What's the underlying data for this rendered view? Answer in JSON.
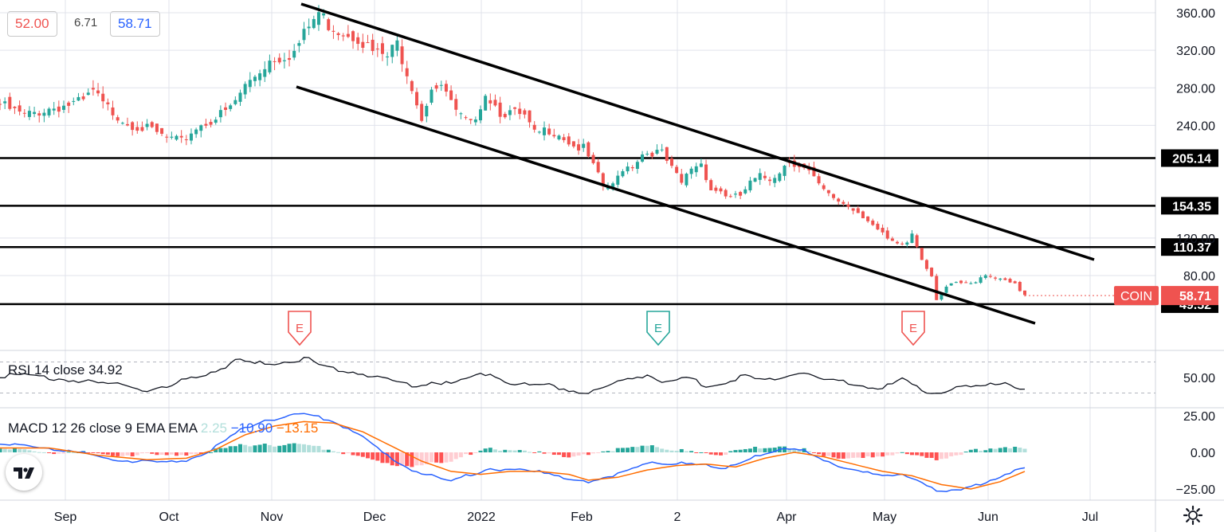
{
  "header": {
    "values": [
      "52.00",
      "6.71",
      "58.71"
    ]
  },
  "colors": {
    "up": "#26a69a",
    "down": "#ef5350",
    "black": "#000000",
    "macd_line": "#2962ff",
    "signal_line": "#ff6d00",
    "hist_up_strong": "#26a69a",
    "hist_up_weak": "#b2dfdb",
    "hist_down_strong": "#ff5252",
    "hist_down_weak": "#ffcdd2",
    "grid": "#e0e3eb"
  },
  "chart_data": {
    "type": "candlestick",
    "symbol": "COIN",
    "price_axis": {
      "ticks": [
        "360.00",
        "320.00",
        "280.00",
        "240.00",
        "120.00",
        "80.00"
      ],
      "tick_values": [
        360,
        320,
        280,
        240,
        120,
        80
      ],
      "ylim": [
        32,
        370
      ]
    },
    "time_axis": {
      "labels": [
        "Sep",
        "Oct",
        "Nov",
        "Dec",
        "2022",
        "Feb",
        "2",
        "Apr",
        "May",
        "Jun",
        "Jul"
      ]
    },
    "horizontal_levels": [
      {
        "value": 205.14,
        "label": "205.14"
      },
      {
        "value": 154.35,
        "label": "154.35"
      },
      {
        "value": 110.37,
        "label": "110.37"
      },
      {
        "value": 49.52,
        "label": "49.52"
      }
    ],
    "last_price": {
      "symbol": "COIN",
      "value": 58.71,
      "label": "58.71"
    },
    "channel_lines": [
      {
        "name": "upper",
        "from": {
          "x": "Nov 8",
          "y": 365
        },
        "to": {
          "x": "Jul 1",
          "y": 100
        }
      },
      {
        "name": "lower",
        "from": {
          "x": "Nov 8",
          "y": 283
        },
        "to": {
          "x": "Jun 24",
          "y": 33
        }
      }
    ],
    "earnings_markers": [
      {
        "letter": "E",
        "date": "Nov 9",
        "style": "miss"
      },
      {
        "letter": "E",
        "date": "Feb 24",
        "style": "beat"
      },
      {
        "letter": "E",
        "date": "May 10",
        "style": "miss"
      }
    ],
    "price_keypoints": [
      [
        0,
        262
      ],
      [
        5,
        250
      ],
      [
        10,
        258
      ],
      [
        17,
        265
      ],
      [
        19,
        276
      ],
      [
        21,
        262
      ],
      [
        26,
        243
      ],
      [
        31,
        234
      ],
      [
        34,
        226
      ],
      [
        37,
        222
      ],
      [
        40,
        238
      ],
      [
        44,
        248
      ],
      [
        47,
        258
      ],
      [
        50,
        282
      ],
      [
        55,
        310
      ],
      [
        60,
        318
      ],
      [
        63,
        345
      ],
      [
        65,
        360
      ],
      [
        67,
        348
      ],
      [
        69,
        342
      ],
      [
        73,
        335
      ],
      [
        76,
        318
      ],
      [
        79,
        313
      ],
      [
        81,
        327
      ],
      [
        84,
        283
      ],
      [
        86,
        248
      ],
      [
        88,
        282
      ],
      [
        91,
        275
      ],
      [
        93,
        252
      ],
      [
        96,
        240
      ],
      [
        99,
        275
      ],
      [
        102,
        255
      ],
      [
        105,
        252
      ],
      [
        107,
        248
      ],
      [
        109,
        230
      ],
      [
        112,
        236
      ],
      [
        114,
        232
      ],
      [
        117,
        218
      ],
      [
        119,
        215
      ],
      [
        121,
        196
      ],
      [
        123,
        175
      ],
      [
        125,
        175
      ],
      [
        127,
        195
      ],
      [
        129,
        198
      ],
      [
        131,
        210
      ],
      [
        133,
        212
      ],
      [
        135,
        210
      ],
      [
        137,
        193
      ],
      [
        139,
        178
      ],
      [
        141,
        195
      ],
      [
        143,
        200
      ],
      [
        145,
        172
      ],
      [
        147,
        170
      ],
      [
        149,
        162
      ],
      [
        151,
        165
      ],
      [
        153,
        178
      ],
      [
        155,
        185
      ],
      [
        157,
        183
      ],
      [
        159,
        192
      ],
      [
        161,
        203
      ],
      [
        163,
        198
      ],
      [
        165,
        190
      ],
      [
        167,
        175
      ],
      [
        169,
        165
      ],
      [
        171,
        160
      ],
      [
        173,
        154
      ],
      [
        175,
        148
      ],
      [
        177,
        140
      ],
      [
        179,
        128
      ],
      [
        181,
        118
      ],
      [
        183,
        112
      ],
      [
        185,
        115
      ],
      [
        186,
        125
      ],
      [
        188,
        98
      ],
      [
        190,
        80
      ],
      [
        191,
        55
      ],
      [
        193,
        68
      ],
      [
        195,
        72
      ],
      [
        197,
        71
      ],
      [
        199,
        72
      ],
      [
        201,
        82
      ],
      [
        203,
        78
      ],
      [
        205,
        76
      ],
      [
        207,
        72
      ],
      [
        208,
        62
      ],
      [
        209,
        58.71
      ]
    ]
  },
  "rsi": {
    "label": "RSI 14 close",
    "value": "34.92",
    "ticks": [
      "50.00"
    ],
    "tick_values": [
      50
    ],
    "ylim": [
      20,
      95
    ],
    "bands": [
      70,
      30
    ],
    "keypoints": [
      [
        0,
        52
      ],
      [
        5,
        53
      ],
      [
        10,
        50
      ],
      [
        15,
        46
      ],
      [
        20,
        43
      ],
      [
        25,
        41
      ],
      [
        30,
        34
      ],
      [
        34,
        36
      ],
      [
        38,
        48
      ],
      [
        42,
        55
      ],
      [
        46,
        64
      ],
      [
        48,
        72
      ],
      [
        52,
        68
      ],
      [
        56,
        69
      ],
      [
        60,
        72
      ],
      [
        63,
        75
      ],
      [
        65,
        66
      ],
      [
        68,
        61
      ],
      [
        72,
        57
      ],
      [
        76,
        52
      ],
      [
        80,
        45
      ],
      [
        84,
        40
      ],
      [
        88,
        44
      ],
      [
        92,
        41
      ],
      [
        96,
        50
      ],
      [
        100,
        56
      ],
      [
        104,
        42
      ],
      [
        108,
        40
      ],
      [
        112,
        41
      ],
      [
        116,
        34
      ],
      [
        120,
        30
      ],
      [
        124,
        39
      ],
      [
        128,
        48
      ],
      [
        132,
        54
      ],
      [
        136,
        42
      ],
      [
        140,
        50
      ],
      [
        144,
        40
      ],
      [
        148,
        43
      ],
      [
        152,
        52
      ],
      [
        156,
        45
      ],
      [
        160,
        52
      ],
      [
        164,
        58
      ],
      [
        168,
        46
      ],
      [
        172,
        44
      ],
      [
        176,
        40
      ],
      [
        180,
        36
      ],
      [
        184,
        47
      ],
      [
        188,
        34
      ],
      [
        191,
        30
      ],
      [
        195,
        36
      ],
      [
        200,
        38
      ],
      [
        205,
        44
      ],
      [
        209,
        35
      ]
    ]
  },
  "macd": {
    "label": "MACD 12 26 close 9 EMA EMA",
    "histogram": "2.25",
    "macd": "−10.90",
    "signal": "−13.15",
    "ticks": [
      "25.00",
      "0.00",
      "−25.00"
    ],
    "tick_values": [
      25,
      0,
      -25
    ],
    "ylim": [
      -32,
      30
    ],
    "macd_keypoints": [
      [
        0,
        5
      ],
      [
        8,
        4
      ],
      [
        16,
        0
      ],
      [
        22,
        -4
      ],
      [
        28,
        -6
      ],
      [
        34,
        -7
      ],
      [
        38,
        -5
      ],
      [
        42,
        0
      ],
      [
        46,
        8
      ],
      [
        50,
        17
      ],
      [
        54,
        22
      ],
      [
        58,
        24
      ],
      [
        61,
        26
      ],
      [
        64,
        25
      ],
      [
        68,
        21
      ],
      [
        72,
        15
      ],
      [
        76,
        5
      ],
      [
        80,
        -5
      ],
      [
        84,
        -12
      ],
      [
        88,
        -16
      ],
      [
        92,
        -20
      ],
      [
        96,
        -15
      ],
      [
        100,
        -11
      ],
      [
        104,
        -12
      ],
      [
        108,
        -13
      ],
      [
        112,
        -14
      ],
      [
        116,
        -18
      ],
      [
        120,
        -21
      ],
      [
        124,
        -17
      ],
      [
        128,
        -11
      ],
      [
        132,
        -7
      ],
      [
        136,
        -9
      ],
      [
        140,
        -7
      ],
      [
        144,
        -8
      ],
      [
        148,
        -11
      ],
      [
        152,
        -6
      ],
      [
        156,
        0
      ],
      [
        160,
        3
      ],
      [
        164,
        1
      ],
      [
        168,
        -6
      ],
      [
        172,
        -10
      ],
      [
        176,
        -13
      ],
      [
        180,
        -17
      ],
      [
        184,
        -15
      ],
      [
        188,
        -20
      ],
      [
        192,
        -27
      ],
      [
        196,
        -26
      ],
      [
        200,
        -22
      ],
      [
        204,
        -16
      ],
      [
        209,
        -11
      ]
    ],
    "signal_keypoints": [
      [
        0,
        3
      ],
      [
        10,
        3
      ],
      [
        20,
        -2
      ],
      [
        30,
        -5
      ],
      [
        38,
        -4
      ],
      [
        44,
        2
      ],
      [
        50,
        12
      ],
      [
        56,
        18
      ],
      [
        62,
        21
      ],
      [
        68,
        20
      ],
      [
        74,
        14
      ],
      [
        80,
        4
      ],
      [
        86,
        -6
      ],
      [
        92,
        -13
      ],
      [
        98,
        -15
      ],
      [
        104,
        -13
      ],
      [
        110,
        -13
      ],
      [
        116,
        -15
      ],
      [
        120,
        -19
      ],
      [
        126,
        -17
      ],
      [
        132,
        -12
      ],
      [
        138,
        -9
      ],
      [
        144,
        -8
      ],
      [
        150,
        -10
      ],
      [
        156,
        -4
      ],
      [
        162,
        0
      ],
      [
        168,
        -3
      ],
      [
        174,
        -8
      ],
      [
        180,
        -13
      ],
      [
        186,
        -16
      ],
      [
        192,
        -22
      ],
      [
        198,
        -25
      ],
      [
        204,
        -20
      ],
      [
        209,
        -13
      ]
    ]
  }
}
